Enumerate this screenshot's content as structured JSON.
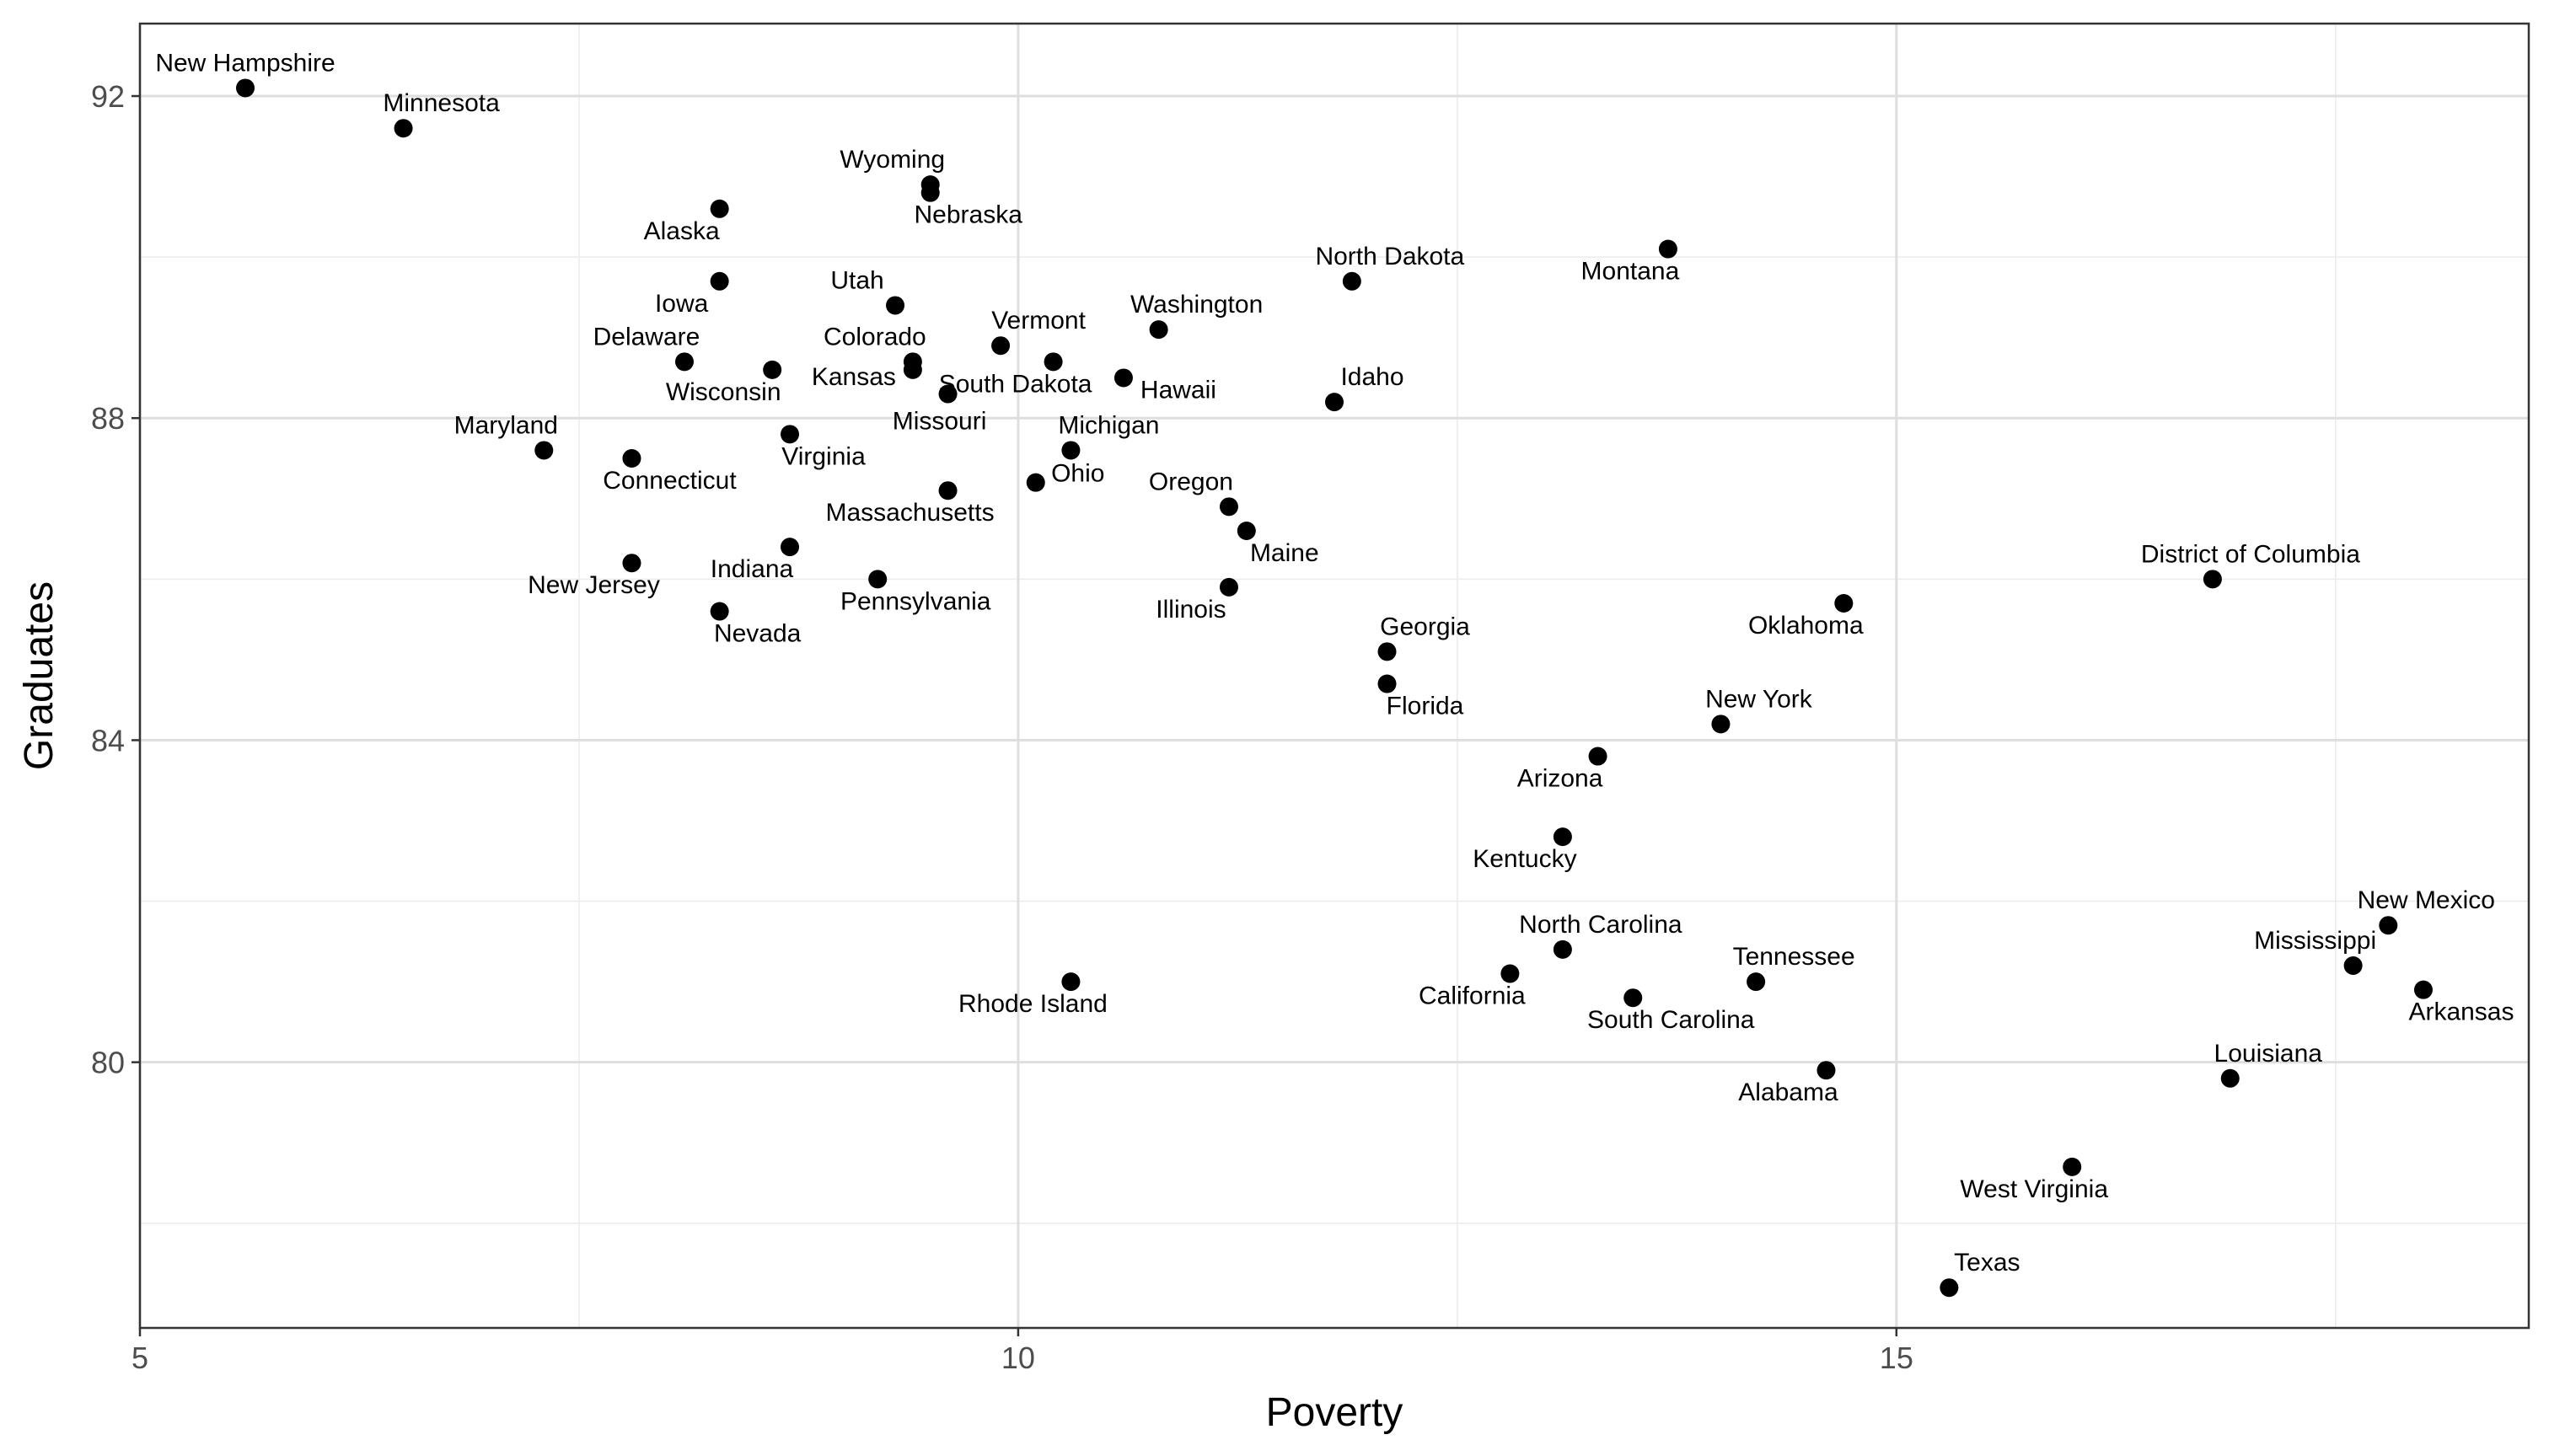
{
  "chart_data": {
    "type": "scatter",
    "title": "",
    "xlabel": "Poverty",
    "ylabel": "Graduates",
    "xlim": [
      5,
      18.6
    ],
    "ylim": [
      76.7,
      92.9
    ],
    "x_ticks": [
      5,
      10,
      15
    ],
    "x_tick_labels": [
      "5",
      "10",
      "15"
    ],
    "y_ticks": [
      80,
      84,
      88,
      92
    ],
    "y_tick_labels": [
      "80",
      "84",
      "88",
      "92"
    ],
    "grid": true,
    "legend": "none",
    "point_color": "#000000",
    "points": [
      {
        "label": "New Hampshire",
        "x": 5.6,
        "y": 92.1
      },
      {
        "label": "Minnesota",
        "x": 6.5,
        "y": 91.6
      },
      {
        "label": "Wyoming",
        "x": 9.5,
        "y": 90.9
      },
      {
        "label": "Nebraska",
        "x": 9.5,
        "y": 90.8
      },
      {
        "label": "Alaska",
        "x": 8.3,
        "y": 90.6
      },
      {
        "label": "Montana",
        "x": 13.7,
        "y": 90.1
      },
      {
        "label": "Iowa",
        "x": 8.3,
        "y": 89.7
      },
      {
        "label": "North Dakota",
        "x": 11.9,
        "y": 89.7
      },
      {
        "label": "Utah",
        "x": 9.3,
        "y": 89.4
      },
      {
        "label": "Washington",
        "x": 10.8,
        "y": 89.1
      },
      {
        "label": "Vermont",
        "x": 9.9,
        "y": 88.9
      },
      {
        "label": "Delaware",
        "x": 8.1,
        "y": 88.7
      },
      {
        "label": "Colorado",
        "x": 9.4,
        "y": 88.7
      },
      {
        "label": "South Dakota",
        "x": 10.2,
        "y": 88.7
      },
      {
        "label": "Wisconsin",
        "x": 8.6,
        "y": 88.6
      },
      {
        "label": "Kansas",
        "x": 9.4,
        "y": 88.6
      },
      {
        "label": "Hawaii",
        "x": 10.6,
        "y": 88.5
      },
      {
        "label": "Missouri",
        "x": 9.6,
        "y": 88.3
      },
      {
        "label": "Idaho",
        "x": 11.8,
        "y": 88.2
      },
      {
        "label": "Virginia",
        "x": 8.7,
        "y": 87.8
      },
      {
        "label": "Maryland",
        "x": 7.3,
        "y": 87.6
      },
      {
        "label": "Michigan",
        "x": 10.3,
        "y": 87.6
      },
      {
        "label": "Connecticut",
        "x": 7.8,
        "y": 87.5
      },
      {
        "label": "Ohio",
        "x": 10.1,
        "y": 87.2
      },
      {
        "label": "Massachusetts",
        "x": 9.6,
        "y": 87.1
      },
      {
        "label": "Oregon",
        "x": 11.2,
        "y": 86.9
      },
      {
        "label": "Maine",
        "x": 11.3,
        "y": 86.6
      },
      {
        "label": "Indiana",
        "x": 8.7,
        "y": 86.4
      },
      {
        "label": "New Jersey",
        "x": 7.8,
        "y": 86.2
      },
      {
        "label": "Pennsylvania",
        "x": 9.2,
        "y": 86.0
      },
      {
        "label": "District of Columbia",
        "x": 16.8,
        "y": 86.0
      },
      {
        "label": "Illinois",
        "x": 11.2,
        "y": 85.9
      },
      {
        "label": "Oklahoma",
        "x": 14.7,
        "y": 85.7
      },
      {
        "label": "Nevada",
        "x": 8.3,
        "y": 85.6
      },
      {
        "label": "Georgia",
        "x": 12.1,
        "y": 85.1
      },
      {
        "label": "Florida",
        "x": 12.1,
        "y": 84.7
      },
      {
        "label": "New York",
        "x": 14.0,
        "y": 84.2
      },
      {
        "label": "Arizona",
        "x": 13.3,
        "y": 83.8
      },
      {
        "label": "Kentucky",
        "x": 13.1,
        "y": 82.8
      },
      {
        "label": "New Mexico",
        "x": 17.8,
        "y": 81.7
      },
      {
        "label": "North Carolina",
        "x": 13.1,
        "y": 81.4
      },
      {
        "label": "Mississippi",
        "x": 17.6,
        "y": 81.2
      },
      {
        "label": "California",
        "x": 12.8,
        "y": 81.1
      },
      {
        "label": "Tennessee",
        "x": 14.2,
        "y": 81.0
      },
      {
        "label": "Rhode Island",
        "x": 10.3,
        "y": 81.0
      },
      {
        "label": "Arkansas",
        "x": 18.0,
        "y": 80.9
      },
      {
        "label": "South Carolina",
        "x": 13.5,
        "y": 80.8
      },
      {
        "label": "Alabama",
        "x": 14.6,
        "y": 79.9
      },
      {
        "label": "Louisiana",
        "x": 16.9,
        "y": 79.8
      },
      {
        "label": "West Virginia",
        "x": 16.0,
        "y": 78.7
      },
      {
        "label": "Texas",
        "x": 15.3,
        "y": 77.2
      }
    ]
  }
}
